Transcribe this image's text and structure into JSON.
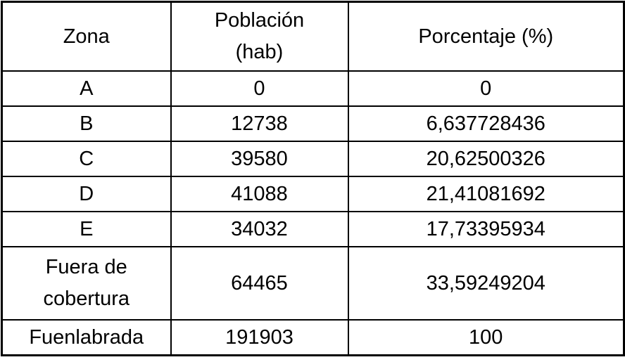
{
  "table": {
    "columns": [
      "Zona",
      "Población\n(hab)",
      "Porcentaje (%)"
    ],
    "rows": [
      {
        "zona": "A",
        "poblacion": "0",
        "porcentaje": "0"
      },
      {
        "zona": "B",
        "poblacion": "12738",
        "porcentaje": "6,637728436"
      },
      {
        "zona": "C",
        "poblacion": "39580",
        "porcentaje": "20,62500326"
      },
      {
        "zona": "D",
        "poblacion": "41088",
        "porcentaje": "21,41081692"
      },
      {
        "zona": "E",
        "poblacion": "34032",
        "porcentaje": "17,73395934"
      },
      {
        "zona": "Fuera de\ncobertura",
        "poblacion": "64465",
        "porcentaje": "33,59249204"
      },
      {
        "zona": "Fuenlabrada",
        "poblacion": "191903",
        "porcentaje": "100"
      }
    ]
  },
  "chart_data": {
    "type": "table",
    "title": "",
    "columns": [
      "Zona",
      "Población (hab)",
      "Porcentaje (%)"
    ],
    "rows": [
      [
        "A",
        0,
        0
      ],
      [
        "B",
        12738,
        6.637728436
      ],
      [
        "C",
        39580,
        20.62500326
      ],
      [
        "D",
        41088,
        21.41081692
      ],
      [
        "E",
        34032,
        17.73395934
      ],
      [
        "Fuera de cobertura",
        64465,
        33.59249204
      ],
      [
        "Fuenlabrada",
        191903,
        100
      ]
    ],
    "number_format": "decimal comma (es-ES)"
  },
  "colors": {
    "border": "#000000",
    "text": "#000000",
    "background": "#ffffff"
  }
}
